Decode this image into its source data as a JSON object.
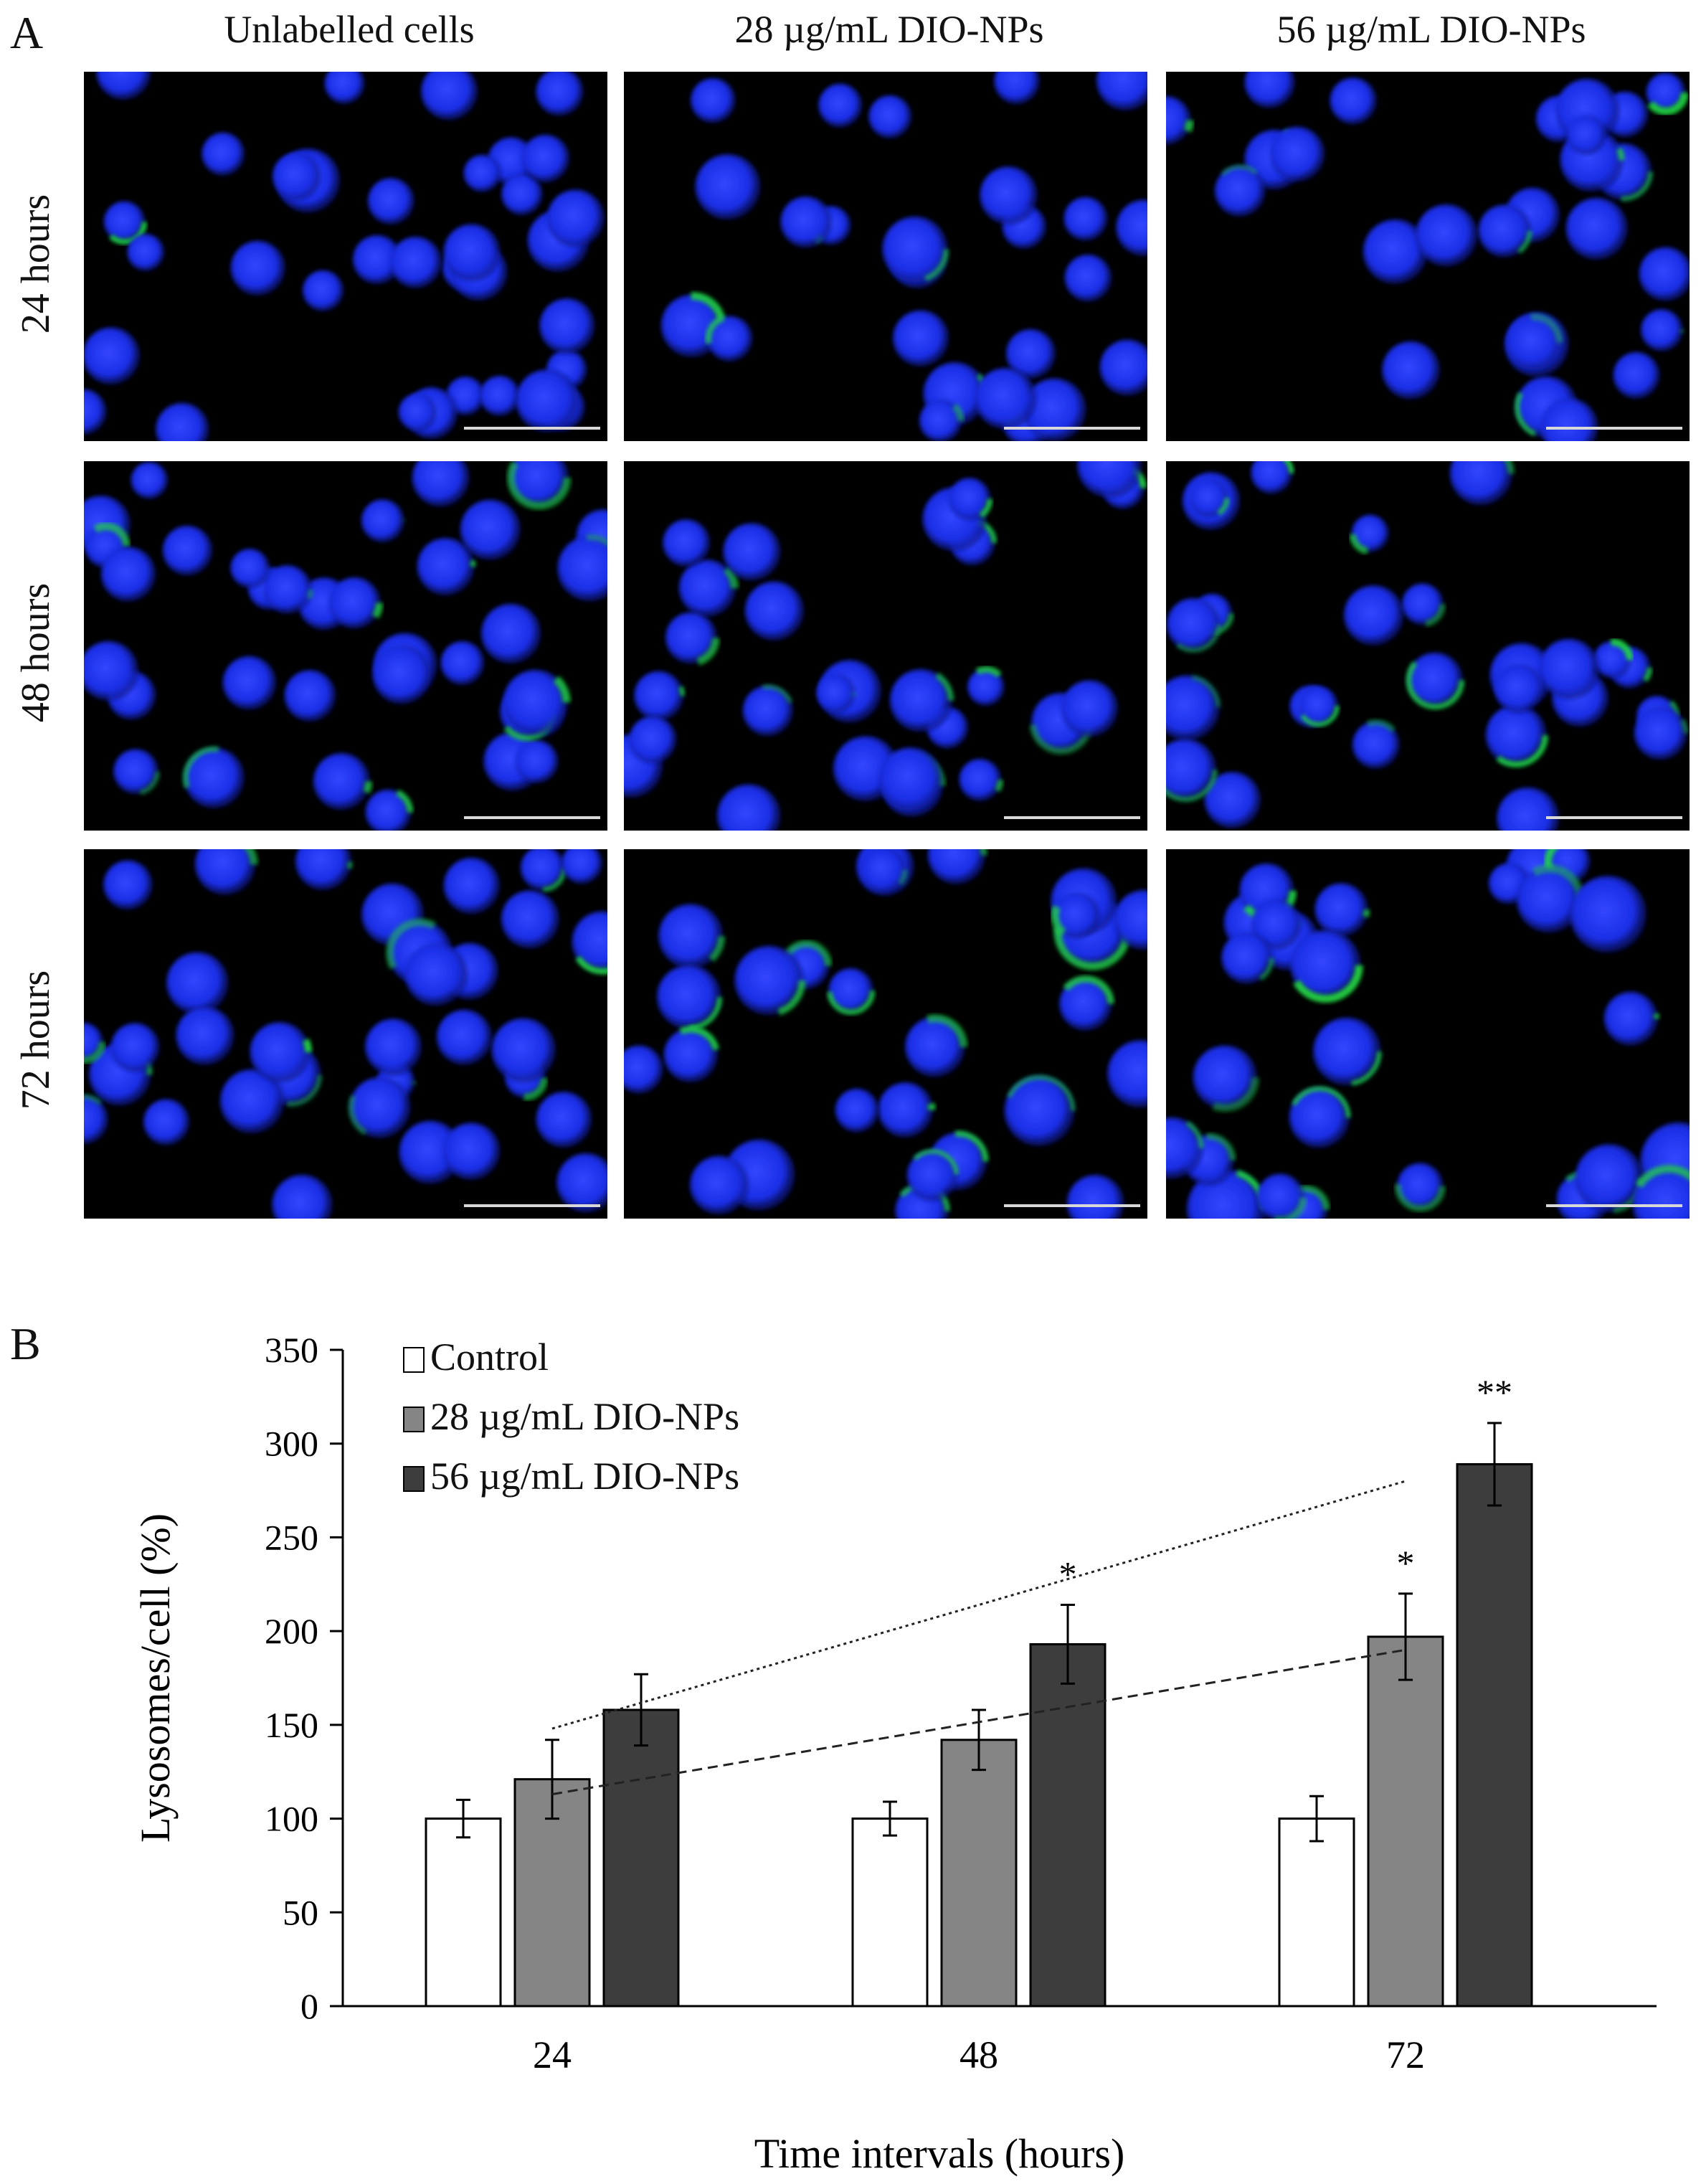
{
  "panel_a": {
    "letter": "A",
    "columns": [
      "Unlabelled cells",
      "28 µg/mL DIO-NPs",
      "56 µg/mL DIO-NPs"
    ],
    "rows": [
      "24 hours",
      "48 hours",
      "72 hours"
    ]
  },
  "panel_b": {
    "letter": "B"
  },
  "colors": {
    "nucleus": "#1f33ff",
    "lysosome": "#22e83a",
    "control": "#ffffff",
    "dio28": "#858585",
    "dio56": "#3d3d3d"
  },
  "chart_data": {
    "type": "bar",
    "xlabel": "Time intervals (hours)",
    "ylabel": "Lysosomes/cell (%)",
    "categories": [
      "24",
      "48",
      "72"
    ],
    "ylim": [
      0,
      350
    ],
    "yticks": [
      0,
      50,
      100,
      150,
      200,
      250,
      300,
      350
    ],
    "legend_position": "top-left",
    "series": [
      {
        "name": "Control",
        "values": [
          100,
          100,
          100
        ],
        "errors": [
          10,
          9,
          12
        ],
        "color": "#ffffff"
      },
      {
        "name": "28 µg/mL DIO-NPs",
        "values": [
          121,
          142,
          197
        ],
        "errors": [
          21,
          16,
          23
        ],
        "color": "#858585"
      },
      {
        "name": "56 µg/mL DIO-NPs",
        "values": [
          158,
          193,
          289
        ],
        "errors": [
          19,
          21,
          22
        ],
        "color": "#3d3d3d"
      }
    ],
    "annotations": [
      {
        "series": 2,
        "category": 1,
        "text": "*"
      },
      {
        "series": 1,
        "category": 2,
        "text": "*"
      },
      {
        "series": 2,
        "category": 2,
        "text": "**"
      }
    ],
    "trendlines": [
      {
        "series": "28 µg/mL DIO-NPs",
        "from": [
          0,
          113
        ],
        "to": [
          2,
          190
        ],
        "style": "dashed"
      },
      {
        "series": "56 µg/mL DIO-NPs",
        "from": [
          0,
          148
        ],
        "to": [
          2,
          280
        ],
        "style": "dotted"
      }
    ]
  }
}
